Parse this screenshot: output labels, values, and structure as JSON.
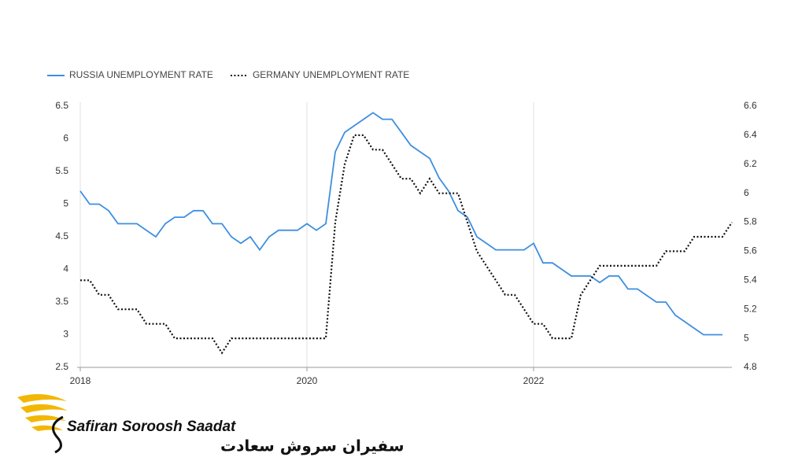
{
  "chart_data": {
    "type": "line",
    "categories": [
      "2018",
      null,
      null,
      null,
      null,
      null,
      null,
      null,
      null,
      null,
      null,
      null,
      null,
      null,
      null,
      null,
      null,
      null,
      null,
      null,
      null,
      null,
      null,
      null,
      "2020",
      null,
      null,
      null,
      null,
      null,
      null,
      null,
      null,
      null,
      null,
      null,
      null,
      null,
      null,
      null,
      null,
      null,
      null,
      null,
      null,
      null,
      null,
      null,
      "2022",
      null,
      null,
      null,
      null,
      null,
      null,
      null,
      null,
      null,
      null,
      null,
      null,
      null,
      null,
      null,
      null,
      null,
      null,
      null,
      null,
      null
    ],
    "series": [
      {
        "name": "RUSSIA UNEMPLOYMENT RATE",
        "color": "#3d8fe0",
        "style": "solid",
        "values": [
          5.2,
          5.0,
          5.0,
          4.9,
          4.7,
          4.7,
          4.7,
          4.6,
          4.5,
          4.7,
          4.8,
          4.8,
          4.9,
          4.9,
          4.7,
          4.7,
          4.5,
          4.4,
          4.5,
          4.3,
          4.5,
          4.6,
          4.6,
          4.6,
          4.7,
          4.6,
          4.7,
          5.8,
          6.1,
          6.2,
          6.3,
          6.4,
          6.3,
          6.3,
          6.1,
          5.9,
          5.8,
          5.7,
          5.4,
          5.2,
          4.9,
          4.8,
          4.5,
          4.4,
          4.3,
          4.3,
          4.3,
          4.3,
          4.4,
          4.1,
          4.1,
          4.0,
          3.9,
          3.9,
          3.9,
          3.8,
          3.9,
          3.9,
          3.7,
          3.7,
          3.6,
          3.5,
          3.5,
          3.3,
          3.2,
          3.1,
          3.0,
          3.0,
          3.0,
          null
        ]
      },
      {
        "name": "GERMANY UNEMPLOYMENT RATE",
        "color": "#111111",
        "style": "dotted",
        "axis": "y2",
        "values": [
          5.4,
          5.4,
          5.3,
          5.3,
          5.2,
          5.2,
          5.2,
          5.1,
          5.1,
          5.1,
          5.0,
          5.0,
          5.0,
          5.0,
          5.0,
          4.9,
          5.0,
          5.0,
          5.0,
          5.0,
          5.0,
          5.0,
          5.0,
          5.0,
          5.0,
          5.0,
          5.0,
          5.8,
          6.2,
          6.4,
          6.4,
          6.3,
          6.3,
          6.2,
          6.1,
          6.1,
          6.0,
          6.1,
          6.0,
          6.0,
          6.0,
          5.8,
          5.6,
          5.5,
          5.4,
          5.3,
          5.3,
          5.2,
          5.1,
          5.1,
          5.0,
          5.0,
          5.0,
          5.3,
          5.4,
          5.5,
          5.5,
          5.5,
          5.5,
          5.5,
          5.5,
          5.5,
          5.6,
          5.6,
          5.6,
          5.7,
          5.7,
          5.7,
          5.7,
          5.8
        ]
      }
    ],
    "ylim": [
      2.5,
      6.5
    ],
    "yticks": [
      2.5,
      3,
      3.5,
      4,
      4.5,
      5,
      5.5,
      6,
      6.5
    ],
    "y2lim": [
      4.8,
      6.6
    ],
    "y2ticks": [
      4.8,
      5,
      5.2,
      5.4,
      5.6,
      5.8,
      6,
      6.2,
      6.4,
      6.6
    ],
    "grid": true,
    "legend": "top-left"
  },
  "logo": {
    "name": "Safiran Soroosh Saadat",
    "name_fa": "سفیران سروش سعادت"
  }
}
